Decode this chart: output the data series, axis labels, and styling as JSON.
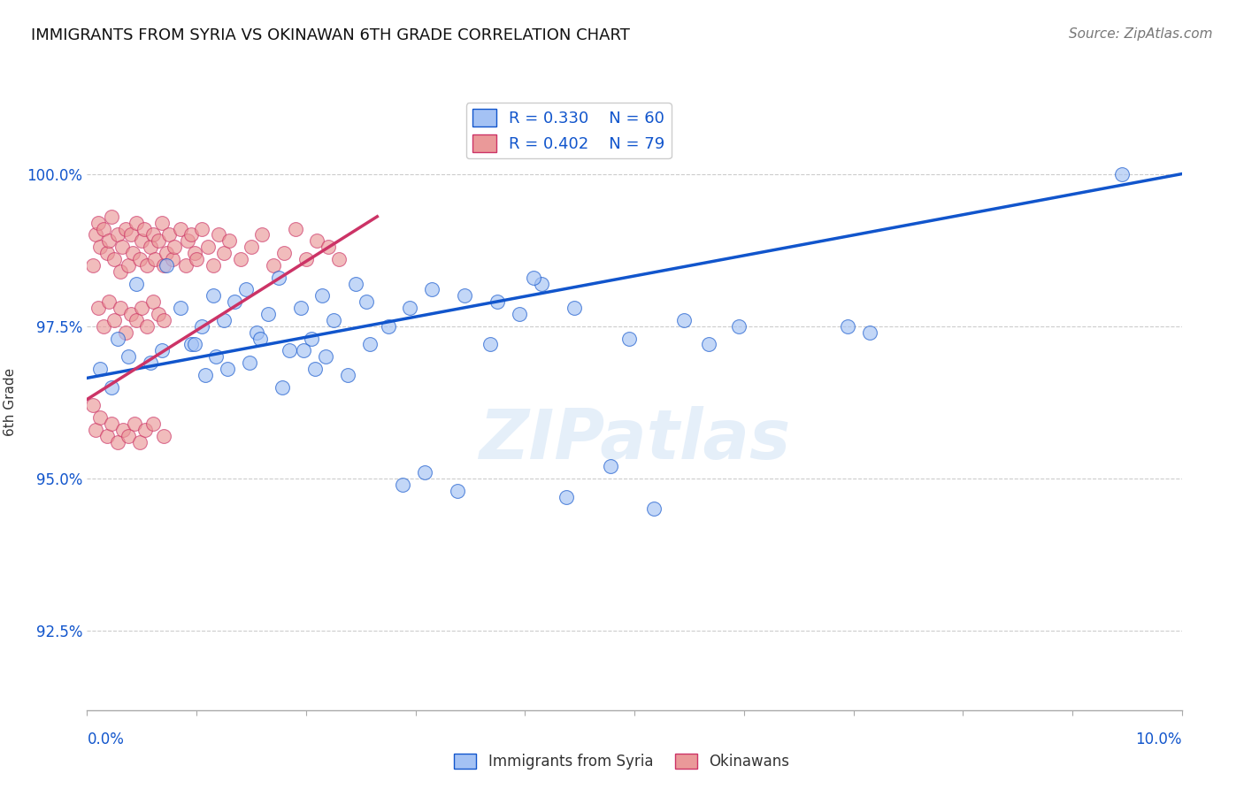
{
  "title": "IMMIGRANTS FROM SYRIA VS OKINAWAN 6TH GRADE CORRELATION CHART",
  "source": "Source: ZipAtlas.com",
  "ylabel": "6th Grade",
  "y_ticks": [
    92.5,
    95.0,
    97.5,
    100.0
  ],
  "y_tick_labels": [
    "92.5%",
    "95.0%",
    "97.5%",
    "100.0%"
  ],
  "x_range": [
    0.0,
    10.0
  ],
  "y_range": [
    91.2,
    101.3
  ],
  "legend_r1": "R = 0.330",
  "legend_n1": "N = 60",
  "legend_r2": "R = 0.402",
  "legend_n2": "N = 79",
  "blue_color": "#a4c2f4",
  "pink_color": "#ea9999",
  "blue_line_color": "#1155cc",
  "pink_line_color": "#cc3366",
  "blue_line": [
    [
      0.0,
      96.65
    ],
    [
      10.0,
      100.0
    ]
  ],
  "pink_line": [
    [
      0.0,
      96.3
    ],
    [
      2.65,
      99.3
    ]
  ],
  "blue_scatter_x": [
    0.28,
    0.45,
    0.72,
    0.85,
    0.95,
    1.05,
    1.15,
    1.25,
    1.35,
    1.45,
    1.55,
    1.65,
    1.75,
    1.85,
    1.95,
    2.05,
    2.15,
    2.25,
    2.45,
    2.55,
    2.75,
    2.95,
    3.15,
    3.45,
    3.75,
    3.95,
    4.15,
    4.45,
    4.95,
    5.45,
    5.95,
    6.95,
    7.15,
    0.12,
    0.22,
    0.38,
    0.58,
    0.68,
    0.98,
    1.08,
    1.18,
    1.28,
    1.48,
    1.58,
    1.78,
    1.98,
    2.08,
    2.18,
    2.38,
    2.58,
    2.88,
    3.08,
    3.38,
    3.68,
    4.08,
    4.38,
    4.78,
    5.18,
    5.68,
    9.45
  ],
  "blue_scatter_y": [
    97.3,
    98.2,
    98.5,
    97.8,
    97.2,
    97.5,
    98.0,
    97.6,
    97.9,
    98.1,
    97.4,
    97.7,
    98.3,
    97.1,
    97.8,
    97.3,
    98.0,
    97.6,
    98.2,
    97.9,
    97.5,
    97.8,
    98.1,
    98.0,
    97.9,
    97.7,
    98.2,
    97.8,
    97.3,
    97.6,
    97.5,
    97.5,
    97.4,
    96.8,
    96.5,
    97.0,
    96.9,
    97.1,
    97.2,
    96.7,
    97.0,
    96.8,
    96.9,
    97.3,
    96.5,
    97.1,
    96.8,
    97.0,
    96.7,
    97.2,
    94.9,
    95.1,
    94.8,
    97.2,
    98.3,
    94.7,
    95.2,
    94.5,
    97.2,
    100.0
  ],
  "pink_scatter_x": [
    0.05,
    0.08,
    0.1,
    0.12,
    0.15,
    0.18,
    0.2,
    0.22,
    0.25,
    0.28,
    0.3,
    0.32,
    0.35,
    0.38,
    0.4,
    0.42,
    0.45,
    0.48,
    0.5,
    0.52,
    0.55,
    0.58,
    0.6,
    0.62,
    0.65,
    0.68,
    0.7,
    0.72,
    0.75,
    0.78,
    0.8,
    0.85,
    0.9,
    0.92,
    0.95,
    0.98,
    1.0,
    1.05,
    1.1,
    1.15,
    1.2,
    1.25,
    1.3,
    1.4,
    1.5,
    1.6,
    1.7,
    1.8,
    1.9,
    2.0,
    2.1,
    2.2,
    2.3,
    0.1,
    0.15,
    0.2,
    0.25,
    0.3,
    0.35,
    0.4,
    0.45,
    0.5,
    0.55,
    0.6,
    0.65,
    0.7,
    0.05,
    0.08,
    0.12,
    0.18,
    0.22,
    0.28,
    0.33,
    0.38,
    0.43,
    0.48,
    0.53,
    0.6,
    0.7
  ],
  "pink_scatter_y": [
    98.5,
    99.0,
    99.2,
    98.8,
    99.1,
    98.7,
    98.9,
    99.3,
    98.6,
    99.0,
    98.4,
    98.8,
    99.1,
    98.5,
    99.0,
    98.7,
    99.2,
    98.6,
    98.9,
    99.1,
    98.5,
    98.8,
    99.0,
    98.6,
    98.9,
    99.2,
    98.5,
    98.7,
    99.0,
    98.6,
    98.8,
    99.1,
    98.5,
    98.9,
    99.0,
    98.7,
    98.6,
    99.1,
    98.8,
    98.5,
    99.0,
    98.7,
    98.9,
    98.6,
    98.8,
    99.0,
    98.5,
    98.7,
    99.1,
    98.6,
    98.9,
    98.8,
    98.6,
    97.8,
    97.5,
    97.9,
    97.6,
    97.8,
    97.4,
    97.7,
    97.6,
    97.8,
    97.5,
    97.9,
    97.7,
    97.6,
    96.2,
    95.8,
    96.0,
    95.7,
    95.9,
    95.6,
    95.8,
    95.7,
    95.9,
    95.6,
    95.8,
    95.9,
    95.7
  ]
}
